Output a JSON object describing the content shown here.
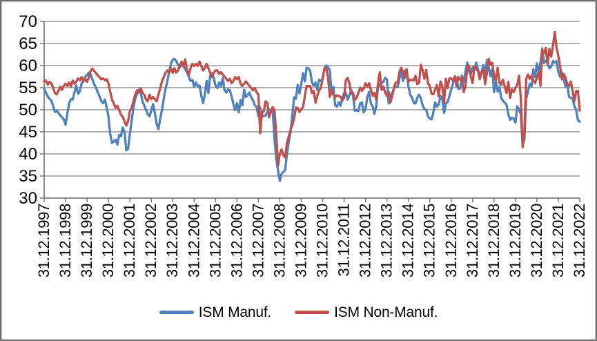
{
  "legend": {
    "series1_label": "ISM Manuf.",
    "series2_label": "ISM Non-Manuf."
  },
  "colors": {
    "series1": "#4F81BD",
    "series2": "#C0504D",
    "gridline": "#808080",
    "axis": "#6f6f6f",
    "text": "#000000",
    "frame_border": "#6e6e6e",
    "background": "#ffffff"
  },
  "chart_data": {
    "type": "line",
    "title": "",
    "xlabel": "",
    "ylabel": "",
    "ylim": [
      30,
      70
    ],
    "grid": true,
    "legend_position": "bottom",
    "x_frequency": "monthly",
    "x_start": "31.12.1997",
    "x_end": "31.12.2022",
    "y_ticks": [
      30,
      35,
      40,
      45,
      50,
      55,
      60,
      65,
      70
    ],
    "x_tick_labels": [
      "31.12.1997",
      "31.12.1998",
      "31.12.1999",
      "31.12.2000",
      "31.12.2001",
      "31.12.2002",
      "31.12.2003",
      "31.12.2004",
      "31.12.2005",
      "31.12.2006",
      "31.12.2007",
      "31.12.2008",
      "31.12.2009",
      "31.12.2010",
      "31.12.2011",
      "31.12.2012",
      "31.12.2013",
      "31.12.2014",
      "31.12.2015",
      "31.12.2016",
      "31.12.2017",
      "31.12.2018",
      "31.12.2019",
      "31.12.2020",
      "31.12.2021",
      "31.12.2022"
    ],
    "series": [
      {
        "name": "ISM Manuf.",
        "color": "#4F81BD",
        "values": [
          54.8,
          53.8,
          53.0,
          52.5,
          52.0,
          50.9,
          49.5,
          49.8,
          49.3,
          48.7,
          48.3,
          47.8,
          46.6,
          49.2,
          51.5,
          52.4,
          52.3,
          54.0,
          55.5,
          53.6,
          54.2,
          56.0,
          56.6,
          57.5,
          57.8,
          58.4,
          58.0,
          56.9,
          55.8,
          55.0,
          54.0,
          53.0,
          52.0,
          51.5,
          52.3,
          50.5,
          48.5,
          44.5,
          42.5,
          42.8,
          43.2,
          42.1,
          44.3,
          44.0,
          46.0,
          45.0,
          40.8,
          41.2,
          44.5,
          47.5,
          50.5,
          52.5,
          53.5,
          54.5,
          54.0,
          52.0,
          51.0,
          50.0,
          49.0,
          48.5,
          49.8,
          51.3,
          49.3,
          46.8,
          45.6,
          48.0,
          50.0,
          52.5,
          54.8,
          56.5,
          58.5,
          60.5,
          61.3,
          61.5,
          61.0,
          60.2,
          59.6,
          60.5,
          59.8,
          59.2,
          58.5,
          57.5,
          56.5,
          56.8,
          55.2,
          56.2,
          55.3,
          55.5,
          53.2,
          51.5,
          53.5,
          56.5,
          53.8,
          57.8,
          58.2,
          57.2,
          55.4,
          54.9,
          56.2,
          55.3,
          57.2,
          54.5,
          53.9,
          54.6,
          54.4,
          53.0,
          51.3,
          49.9,
          51.5,
          49.4,
          52.2,
          51.0,
          54.5,
          52.9,
          53.3,
          53.9,
          52.8,
          52.1,
          51.0,
          50.7,
          48.5,
          50.5,
          48.4,
          48.7,
          48.6,
          49.5,
          50.1,
          49.9,
          49.7,
          43.6,
          38.8,
          36.3,
          33.9,
          35.5,
          35.9,
          36.4,
          40.0,
          42.7,
          44.9,
          48.8,
          52.8,
          52.5,
          55.6,
          53.7,
          55.8,
          58.3,
          56.4,
          59.5,
          59.4,
          58.8,
          56.2,
          55.4,
          56.2,
          54.5,
          56.8,
          56.5,
          57.0,
          59.4,
          60.0,
          59.6,
          59.0,
          53.6,
          55.2,
          51.0,
          50.7,
          51.7,
          50.9,
          52.6,
          53.8,
          53.8,
          52.3,
          53.3,
          54.5,
          53.3,
          49.8,
          49.9,
          49.7,
          51.4,
          51.6,
          49.4,
          50.1,
          52.9,
          54.0,
          51.4,
          50.8,
          49.1,
          50.8,
          55.2,
          55.6,
          56.1,
          56.3,
          57.2,
          56.9,
          51.4,
          53.3,
          53.8,
          54.8,
          55.3,
          55.2,
          57.0,
          58.8,
          56.5,
          58.9,
          58.6,
          55.4,
          53.4,
          52.8,
          51.6,
          51.4,
          52.7,
          53.4,
          52.6,
          51.0,
          50.1,
          50.0,
          48.5,
          48.0,
          47.8,
          49.4,
          51.7,
          50.7,
          51.2,
          53.1,
          52.5,
          49.3,
          51.4,
          51.8,
          53.1,
          54.6,
          55.9,
          57.6,
          57.1,
          54.7,
          54.8,
          57.7,
          56.2,
          58.7,
          60.7,
          58.6,
          58.1,
          59.6,
          59.0,
          60.7,
          59.2,
          57.2,
          58.6,
          60.1,
          58.0,
          61.2,
          59.7,
          57.6,
          59.2,
          54.0,
          56.5,
          54.1,
          55.2,
          52.7,
          52.0,
          51.6,
          51.1,
          49.0,
          47.7,
          48.2,
          48.0,
          47.1,
          50.8,
          50.0,
          49.0,
          42.0,
          43.2,
          52.5,
          54.1,
          55.9,
          55.3,
          59.2,
          57.4,
          60.5,
          58.6,
          60.7,
          63.9,
          60.6,
          61.1,
          60.5,
          59.4,
          59.8,
          61.0,
          60.7,
          61.0,
          58.6,
          57.5,
          58.5,
          57.0,
          55.3,
          56.0,
          52.9,
          52.7,
          52.6,
          50.8,
          50.0,
          47.6,
          47.3
        ]
      },
      {
        "name": "ISM Non-Manuf.",
        "color": "#C0504D",
        "values": [
          56.4,
          56.6,
          55.7,
          56.3,
          56.0,
          55.0,
          53.8,
          53.5,
          54.3,
          55.2,
          54.5,
          55.4,
          55.9,
          55.4,
          56.2,
          55.3,
          56.6,
          55.9,
          56.4,
          57.1,
          56.7,
          57.4,
          56.4,
          57.0,
          56.3,
          57.3,
          58.8,
          59.3,
          58.8,
          58.3,
          57.8,
          57.4,
          56.9,
          57.1,
          56.7,
          56.9,
          56.0,
          54.0,
          52.3,
          51.4,
          50.4,
          50.9,
          49.9,
          48.9,
          48.4,
          47.4,
          46.4,
          47.4,
          49.7,
          50.4,
          51.9,
          53.4,
          54.4,
          53.9,
          54.9,
          53.9,
          53.4,
          52.4,
          51.9,
          53.4,
          52.4,
          52.9,
          52.4,
          51.9,
          53.4,
          54.9,
          56.4,
          57.4,
          58.4,
          58.9,
          58.4,
          59.4,
          58.4,
          59.4,
          58.4,
          58.9,
          59.9,
          60.9,
          59.9,
          61.4,
          58.9,
          57.9,
          59.4,
          60.4,
          59.9,
          60.4,
          59.9,
          60.9,
          59.9,
          58.9,
          59.4,
          60.4,
          59.4,
          58.4,
          57.4,
          58.4,
          58.9,
          58.9,
          58.1,
          58.5,
          58.0,
          57.5,
          57.0,
          56.5,
          57.0,
          56.0,
          56.5,
          57.4,
          56.9,
          57.4,
          55.9,
          55.4,
          55.9,
          56.4,
          55.9,
          55.4,
          54.9,
          54.4,
          54.9,
          53.9,
          53.4,
          44.7,
          49.3,
          49.6,
          51.9,
          51.6,
          48.3,
          49.6,
          50.6,
          50.0,
          44.4,
          37.4,
          40.1,
          41.0,
          39.7,
          39.2,
          42.5,
          44.0,
          45.5,
          46.5,
          48.0,
          50.5,
          50.4,
          49.5,
          50.1,
          50.6,
          53.0,
          55.4,
          55.3,
          55.4,
          53.8,
          54.3,
          51.6,
          53.2,
          54.3,
          55.0,
          57.1,
          59.3,
          59.6,
          57.3,
          52.9,
          54.5,
          53.4,
          52.8,
          53.3,
          53.1,
          52.9,
          52.1,
          52.7,
          56.7,
          57.2,
          55.9,
          53.6,
          53.8,
          52.2,
          52.7,
          53.8,
          55.0,
          54.3,
          54.8,
          56.0,
          55.2,
          56.0,
          54.5,
          53.2,
          53.8,
          52.3,
          56.0,
          58.5,
          54.5,
          55.3,
          53.9,
          53.1,
          54.0,
          51.7,
          53.2,
          55.1,
          56.2,
          56.0,
          58.6,
          59.5,
          58.5,
          57.2,
          59.2,
          56.3,
          56.8,
          56.8,
          56.6,
          57.7,
          55.8,
          56.1,
          60.2,
          58.9,
          57.0,
          59.0,
          56.0,
          55.4,
          53.6,
          53.5,
          54.6,
          55.6,
          53.0,
          56.4,
          55.4,
          51.5,
          57.0,
          54.9,
          57.1,
          57.1,
          56.6,
          57.5,
          55.3,
          57.4,
          56.8,
          57.3,
          54.0,
          55.4,
          59.7,
          60.0,
          57.5,
          56.0,
          59.8,
          59.4,
          58.7,
          56.9,
          58.5,
          59.0,
          55.8,
          58.4,
          61.5,
          60.2,
          60.6,
          57.7,
          56.6,
          59.5,
          56.2,
          55.6,
          56.8,
          55.2,
          53.8,
          56.3,
          52.7,
          54.6,
          54.0,
          55.0,
          55.6,
          57.7,
          52.6,
          41.5,
          45.3,
          57.0,
          58.0,
          57.0,
          57.7,
          56.7,
          56.0,
          57.3,
          58.6,
          55.4,
          63.5,
          62.8,
          64.0,
          60.3,
          63.8,
          62.0,
          64.5,
          67.6,
          64.0,
          62.2,
          59.7,
          56.9,
          58.1,
          57.3,
          55.8,
          55.4,
          56.4,
          54.3,
          52.0,
          54.2,
          54.3,
          49.8
        ]
      }
    ]
  }
}
